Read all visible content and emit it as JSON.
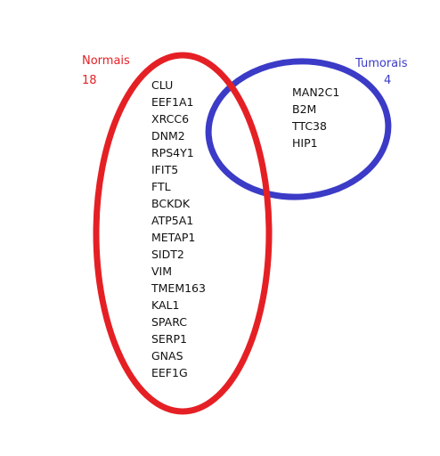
{
  "sets": [
    {
      "name": "Normais",
      "count": "18",
      "color": "#e52025",
      "genes": [
        "CLU",
        "EEF1A1",
        "XRCC6",
        "DNM2",
        "RPS4Y1",
        "IFIT5",
        "FTL",
        "BCKDK",
        "ATP5A1",
        "METAP1",
        "SIDT2",
        "VIM",
        "TMEM163",
        "KAL1",
        "SPARC",
        "SERP1",
        "GNAS",
        "EEF1G"
      ]
    },
    {
      "name": "Tumorais",
      "count": "4",
      "color": "#3b3bc7",
      "genes": [
        "MAN2C1",
        "B2M",
        "TTC38",
        "HIP1"
      ]
    }
  ]
}
